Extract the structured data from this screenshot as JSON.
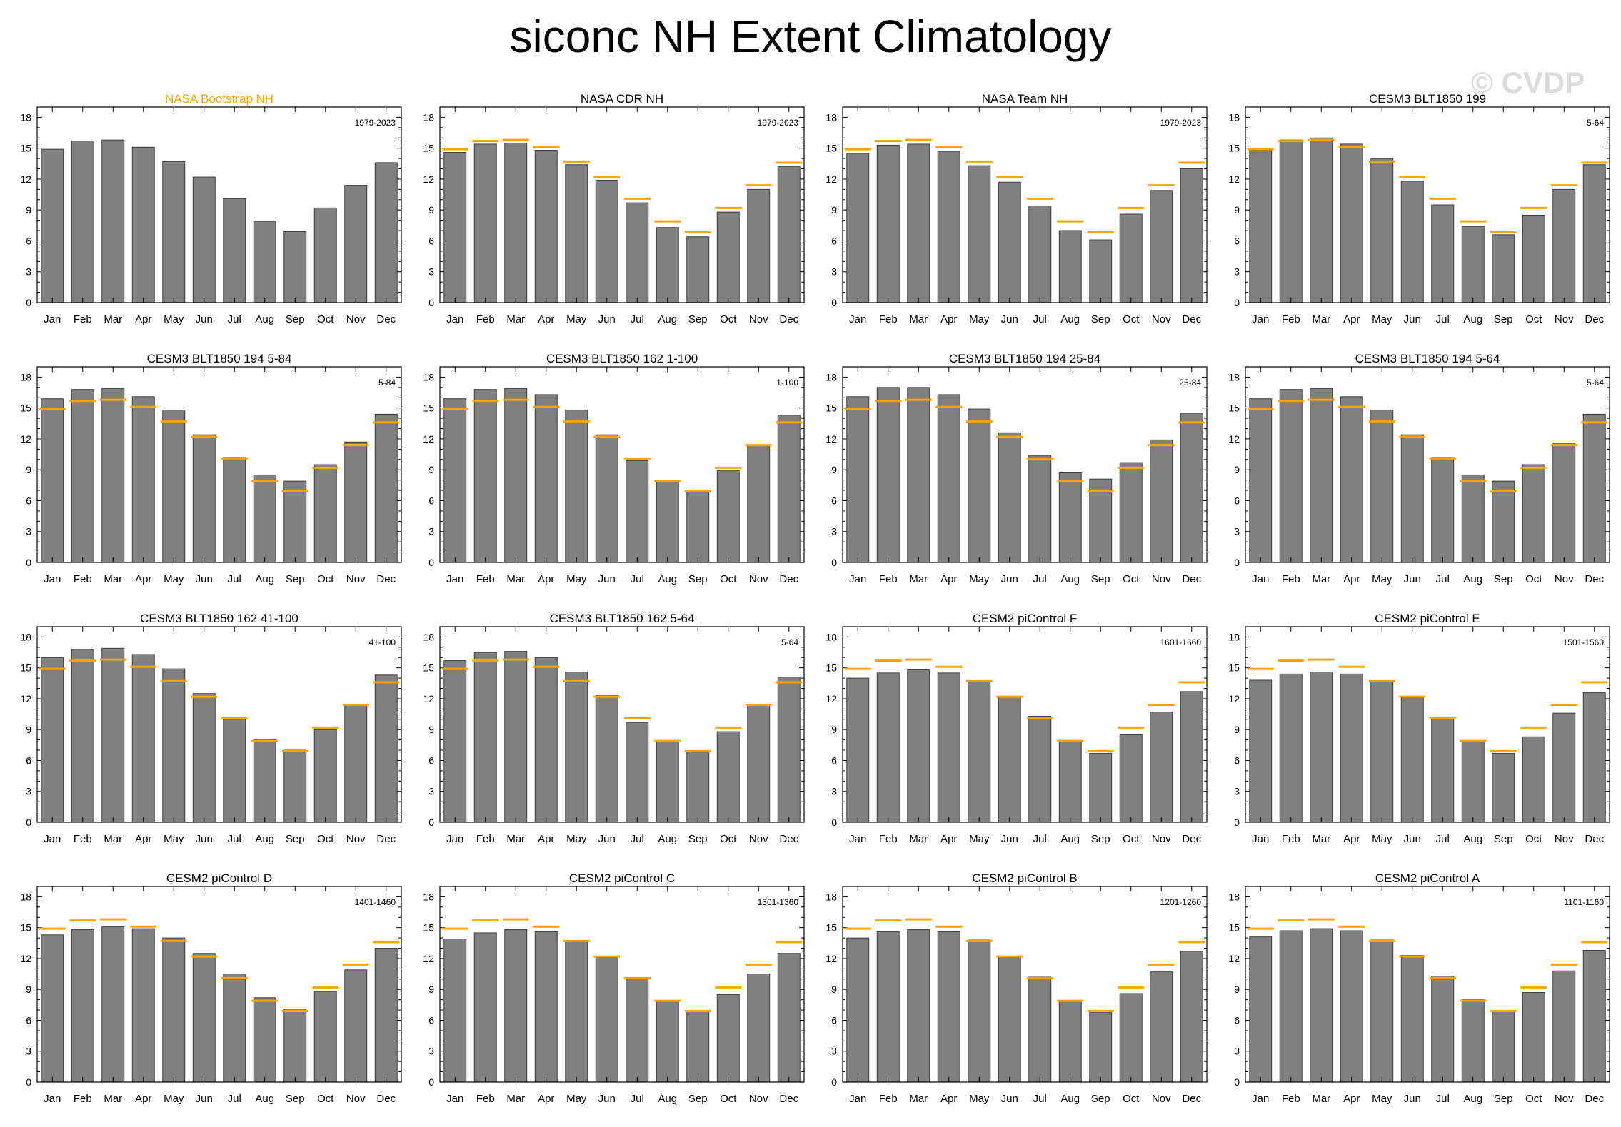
{
  "title": "siconc NH Extent Climatology",
  "watermark": "© CVDP",
  "colors": {
    "bar": "#808080",
    "bar_edge": "#404040",
    "reference": "#FFA500",
    "obs_title": "#FFA500"
  },
  "chart_data": {
    "type": "bar",
    "categories": [
      "Jan",
      "Feb",
      "Mar",
      "Apr",
      "May",
      "Jun",
      "Jul",
      "Aug",
      "Sep",
      "Oct",
      "Nov",
      "Dec"
    ],
    "ylim": [
      0,
      19
    ],
    "yticks": [
      0,
      3,
      6,
      9,
      12,
      15,
      18
    ],
    "reference_series": {
      "name": "NASA Bootstrap NH",
      "values": [
        14.9,
        15.7,
        15.8,
        15.1,
        13.7,
        12.2,
        10.1,
        7.9,
        6.9,
        9.2,
        11.4,
        13.6
      ]
    },
    "panels": [
      {
        "title": "NASA Bootstrap NH",
        "label": "1979-2023",
        "is_reference": true,
        "values": [
          14.9,
          15.7,
          15.8,
          15.1,
          13.7,
          12.2,
          10.1,
          7.9,
          6.9,
          9.2,
          11.4,
          13.6
        ]
      },
      {
        "title": "NASA CDR NH",
        "label": "1979-2023",
        "values": [
          14.6,
          15.4,
          15.5,
          14.8,
          13.4,
          11.9,
          9.7,
          7.3,
          6.4,
          8.8,
          11.0,
          13.2
        ]
      },
      {
        "title": "NASA Team NH",
        "label": "1979-2023",
        "values": [
          14.5,
          15.3,
          15.4,
          14.7,
          13.3,
          11.7,
          9.4,
          7.0,
          6.1,
          8.6,
          10.9,
          13.0
        ]
      },
      {
        "title": "CESM3 BLT1850 199",
        "label": "5-64",
        "values": [
          14.8,
          15.8,
          16.0,
          15.4,
          14.0,
          11.8,
          9.5,
          7.4,
          6.6,
          8.5,
          11.0,
          13.4
        ]
      },
      {
        "title": "CESM3 BLT1850 194 5-84",
        "label": "5-84",
        "values": [
          15.9,
          16.8,
          16.9,
          16.1,
          14.8,
          12.4,
          10.2,
          8.5,
          7.9,
          9.5,
          11.7,
          14.4
        ]
      },
      {
        "title": "CESM3 BLT1850 162 1-100",
        "label": "1-100",
        "values": [
          15.9,
          16.8,
          16.9,
          16.3,
          14.8,
          12.4,
          9.9,
          8.0,
          6.9,
          8.9,
          11.4,
          14.3
        ]
      },
      {
        "title": "CESM3 BLT1850 194 25-84",
        "label": "25-84",
        "values": [
          16.1,
          17.0,
          17.0,
          16.3,
          14.9,
          12.6,
          10.4,
          8.7,
          8.1,
          9.7,
          11.9,
          14.5
        ]
      },
      {
        "title": "CESM3 BLT1850 194 5-64",
        "label": "5-64",
        "values": [
          15.9,
          16.8,
          16.9,
          16.1,
          14.8,
          12.4,
          10.2,
          8.5,
          7.9,
          9.5,
          11.6,
          14.4
        ]
      },
      {
        "title": "CESM3 BLT1850 162 41-100",
        "label": "41-100",
        "values": [
          16.0,
          16.8,
          16.9,
          16.3,
          14.9,
          12.5,
          10.0,
          8.0,
          7.0,
          9.0,
          11.4,
          14.3
        ]
      },
      {
        "title": "CESM3 BLT1850 162 5-64",
        "label": "5-64",
        "values": [
          15.7,
          16.5,
          16.6,
          16.0,
          14.6,
          12.3,
          9.7,
          7.9,
          6.9,
          8.8,
          11.4,
          14.1
        ]
      },
      {
        "title": "CESM2 piControl F",
        "label": "1601-1660",
        "values": [
          14.0,
          14.5,
          14.8,
          14.5,
          13.7,
          12.2,
          10.3,
          7.9,
          6.7,
          8.5,
          10.7,
          12.7
        ]
      },
      {
        "title": "CESM2 piControl E",
        "label": "1501-1560",
        "values": [
          13.8,
          14.4,
          14.6,
          14.4,
          13.7,
          12.1,
          10.1,
          7.8,
          6.7,
          8.3,
          10.6,
          12.6
        ]
      },
      {
        "title": "CESM2 piControl D",
        "label": "1401-1460",
        "values": [
          14.3,
          14.8,
          15.1,
          14.9,
          14.0,
          12.5,
          10.5,
          8.2,
          7.1,
          8.8,
          10.9,
          13.0
        ]
      },
      {
        "title": "CESM2 piControl C",
        "label": "1301-1360",
        "values": [
          13.9,
          14.5,
          14.8,
          14.6,
          13.7,
          12.1,
          10.1,
          7.9,
          6.9,
          8.5,
          10.5,
          12.5
        ]
      },
      {
        "title": "CESM2 piControl B",
        "label": "1201-1260",
        "values": [
          14.0,
          14.6,
          14.8,
          14.6,
          13.8,
          12.1,
          10.2,
          7.9,
          6.8,
          8.6,
          10.7,
          12.7
        ]
      },
      {
        "title": "CESM2 piControl A",
        "label": "1101-1160",
        "values": [
          14.1,
          14.7,
          14.9,
          14.7,
          13.8,
          12.3,
          10.3,
          8.0,
          6.9,
          8.7,
          10.8,
          12.8
        ]
      }
    ]
  }
}
